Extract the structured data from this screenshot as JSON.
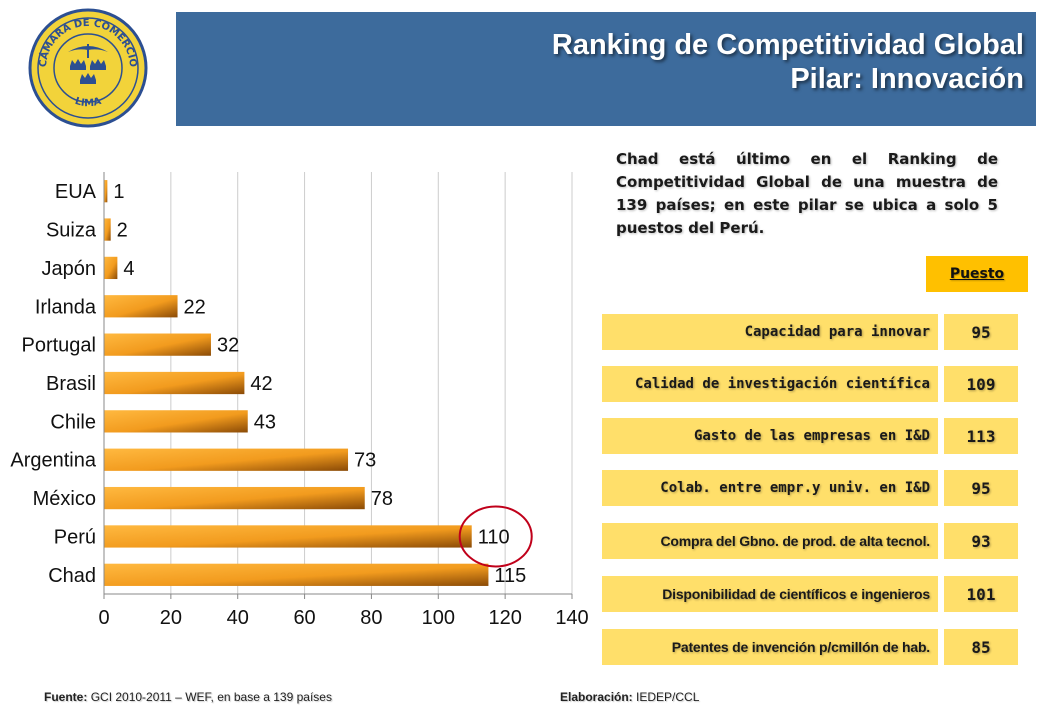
{
  "logo": {
    "top_text": "CÁMARA DE COMERCIO",
    "bottom_text": "LIMA",
    "colors": {
      "ring": "#2c4f92",
      "fill": "#f2d33a",
      "crowns": "#2c4f92"
    }
  },
  "header": {
    "title_line1": "Ranking de Competitividad Global",
    "title_line2": "Pilar: Innovación",
    "background": "#3d6b9c"
  },
  "note": "Chad está último en el Ranking de Competitividad Global de una muestra de 139 países; en este pilar se ubica a solo 5 puestos del Perú.",
  "puesto_header": "Puesto",
  "pillars": [
    {
      "label": "Capacidad para innovar",
      "value": "95"
    },
    {
      "label": "Calidad de investigación científica",
      "value": "109"
    },
    {
      "label": "Gasto de las empresas en I&D",
      "value": "113"
    },
    {
      "label": "Colab. entre empr.y univ. en I&D",
      "value": "95"
    },
    {
      "label": "Compra del Gbno. de prod. de alta tecnol.",
      "value": "93"
    },
    {
      "label": "Disponibilidad de científicos e ingenieros",
      "value": "101"
    },
    {
      "label": "Patentes de invención p/cmillón de hab.",
      "value": "85"
    }
  ],
  "footer": {
    "source_label": "Fuente:",
    "source_text": "GCI 2010-2011 – WEF, en base a 139 países",
    "author_label": "Elaboración:",
    "author_text": "IEDEP/CCL"
  },
  "chart_data": {
    "type": "bar",
    "orientation": "horizontal",
    "categories": [
      "EUA",
      "Suiza",
      "Japón",
      "Irlanda",
      "Portugal",
      "Brasil",
      "Chile",
      "Argentina",
      "México",
      "Perú",
      "Chad"
    ],
    "values": [
      1,
      2,
      4,
      22,
      32,
      42,
      43,
      73,
      78,
      110,
      115
    ],
    "xlim": [
      0,
      140
    ],
    "xticks": [
      0,
      20,
      40,
      60,
      80,
      100,
      120,
      140
    ],
    "grid": true,
    "highlight": "Perú",
    "colors": {
      "bar": "#f29b1e",
      "bar_dark": "#8a4a06",
      "highlight_ring": "#c0001a",
      "grid": "#cccccc"
    }
  }
}
